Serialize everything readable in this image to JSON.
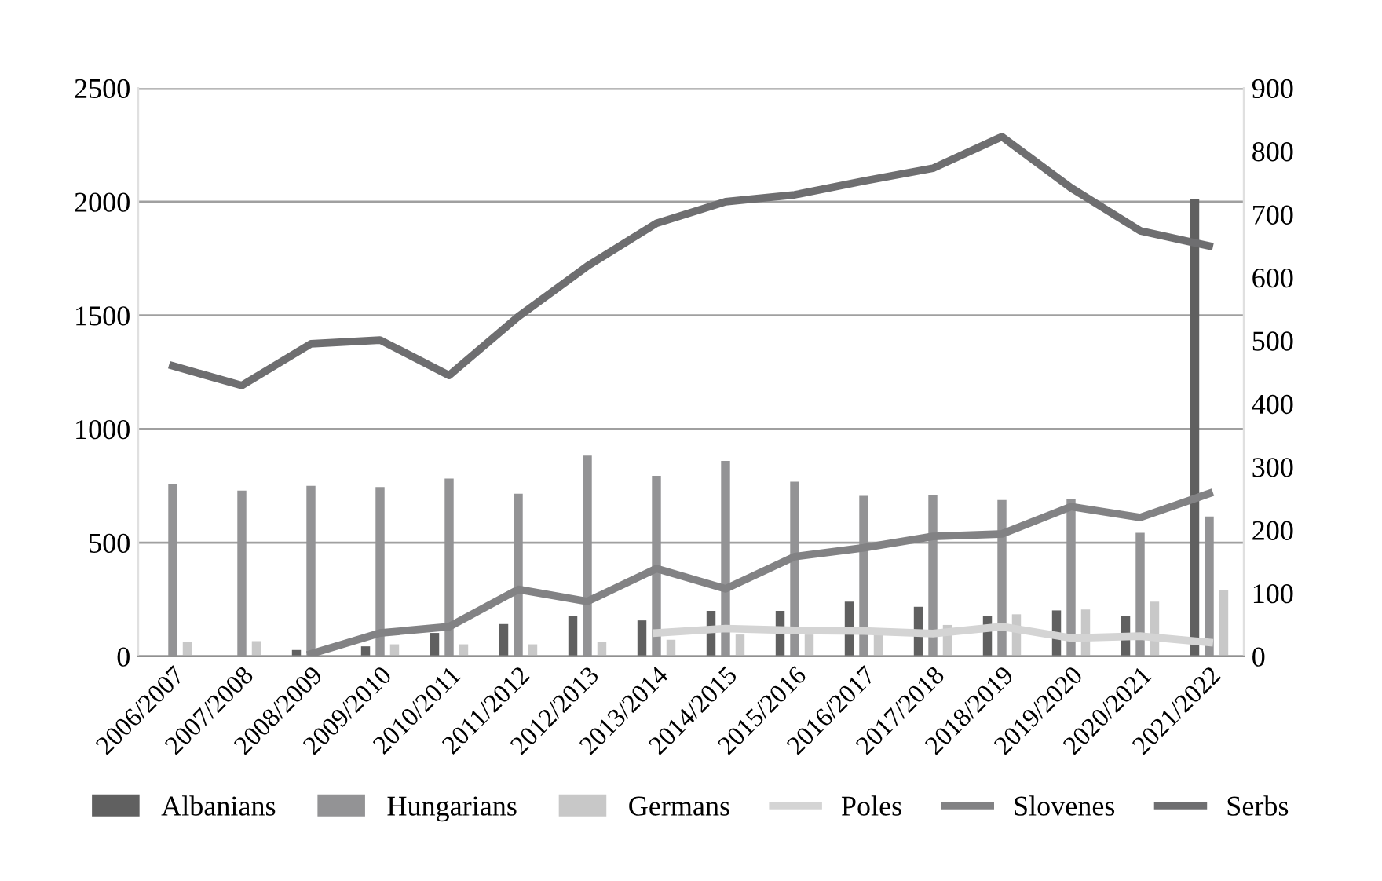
{
  "chart_data": {
    "type": "bar",
    "categories": [
      "2006/2007",
      "2007/2008",
      "2008/2009",
      "2009/2010",
      "2010/2011",
      "2011/2012",
      "2012/2013",
      "2013/2014",
      "2014/2015",
      "2015/2016",
      "2016/2017",
      "2017/2018",
      "2018/2019",
      "2019/2020",
      "2020/2021",
      "2021/2022"
    ],
    "series": [
      {
        "name": "Albanians",
        "color": "#606060",
        "values": [
          null,
          null,
          28,
          44,
          103,
          142,
          177,
          158,
          200,
          200,
          241,
          218,
          179,
          202,
          177,
          2010
        ]
      },
      {
        "name": "Hungarians",
        "color": "#939395",
        "values": [
          757,
          729,
          750,
          745,
          782,
          716,
          883,
          794,
          860,
          768,
          706,
          711,
          688,
          693,
          544,
          615
        ]
      },
      {
        "name": "Germans",
        "color": "#c8c8c8",
        "values": [
          64,
          67,
          null,
          53,
          53,
          53,
          62,
          73,
          96,
          96,
          96,
          138,
          185,
          206,
          241,
          291
        ]
      },
      {
        "name": "Poles",
        "color": "#d4d4d4",
        "type": "line",
        "axis": "y2",
        "values": [
          null,
          null,
          null,
          null,
          null,
          null,
          null,
          37,
          44,
          41,
          40,
          36,
          47,
          29,
          32,
          22
        ]
      },
      {
        "name": "Slovenes",
        "color": "#828284",
        "type": "line",
        "axis": "y2",
        "values": [
          null,
          null,
          4,
          37,
          47,
          106,
          87,
          139,
          107,
          158,
          172,
          190,
          194,
          237,
          220,
          258
        ]
      },
      {
        "name": "Serbs",
        "color": "#6e6e70",
        "type": "line",
        "axis": "y2",
        "values": [
          460,
          429,
          495,
          501,
          445,
          538,
          618,
          686,
          720,
          731,
          753,
          773,
          823,
          742,
          674,
          650
        ]
      }
    ],
    "ylim": [
      0,
      2500
    ],
    "yticks": [
      0,
      500,
      1000,
      1500,
      2000,
      2500
    ],
    "y2lim": [
      0,
      900
    ],
    "y2ticks": [
      0,
      100,
      200,
      300,
      400,
      500,
      600,
      700,
      800,
      900
    ],
    "grid": "y",
    "legend": "bottom",
    "marker": "none",
    "line_style": "solid"
  }
}
